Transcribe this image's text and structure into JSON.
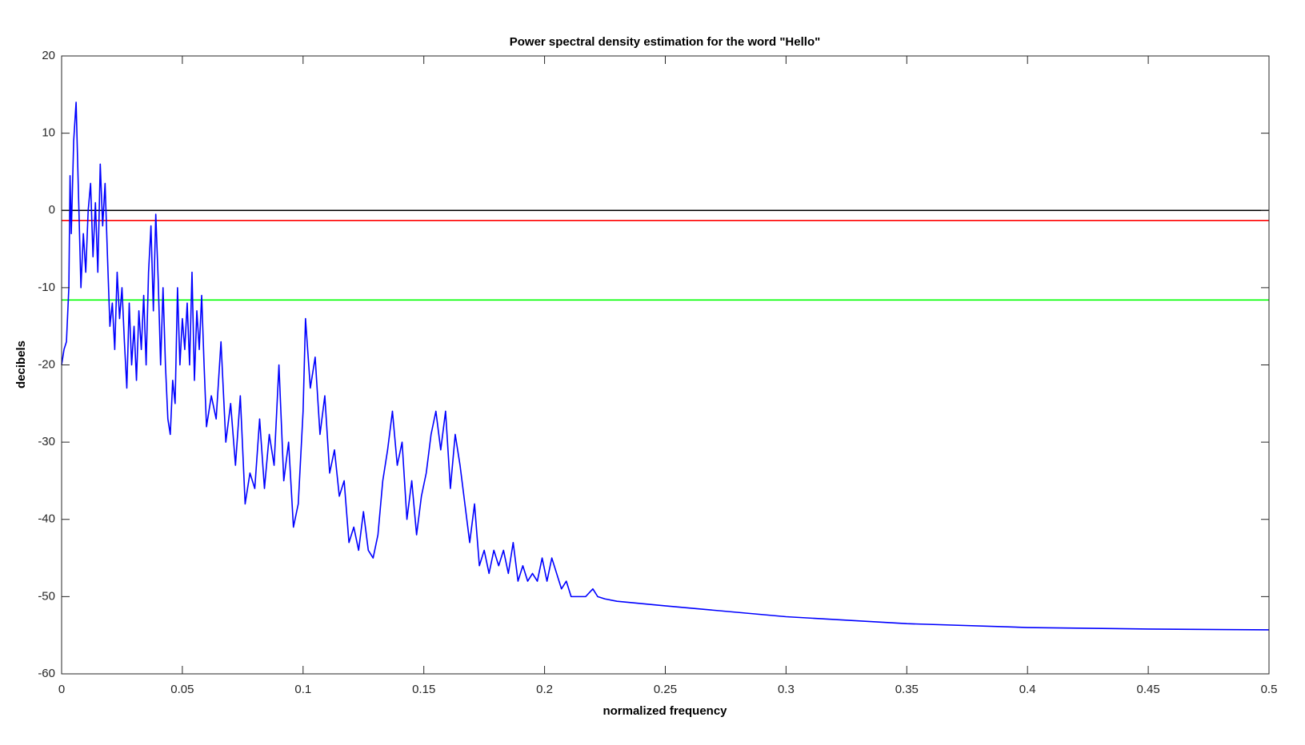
{
  "chart_data": {
    "type": "line",
    "title": "Power spectral density estimation for the word \"Hello\"",
    "x_label": "normalized frequency",
    "y_label": "decibels",
    "xlim": [
      0,
      0.5
    ],
    "ylim": [
      -60,
      20
    ],
    "xticks": [
      0,
      0.05,
      0.1,
      0.15,
      0.2,
      0.25,
      0.3,
      0.35,
      0.4,
      0.45,
      0.5
    ],
    "yticks": [
      -60,
      -50,
      -40,
      -30,
      -20,
      -10,
      0,
      10,
      20
    ],
    "grid": false,
    "series": [
      {
        "color": "#0000ff",
        "x": [
          0,
          0.001,
          0.002,
          0.003,
          0.0035,
          0.004,
          0.005,
          0.006,
          0.007,
          0.008,
          0.009,
          0.01,
          0.011,
          0.012,
          0.013,
          0.014,
          0.015,
          0.016,
          0.017,
          0.018,
          0.019,
          0.02,
          0.021,
          0.022,
          0.023,
          0.024,
          0.025,
          0.026,
          0.027,
          0.028,
          0.029,
          0.03,
          0.031,
          0.032,
          0.033,
          0.034,
          0.035,
          0.036,
          0.037,
          0.038,
          0.039,
          0.04,
          0.041,
          0.042,
          0.043,
          0.044,
          0.045,
          0.046,
          0.047,
          0.048,
          0.049,
          0.05,
          0.051,
          0.052,
          0.053,
          0.054,
          0.055,
          0.056,
          0.057,
          0.058,
          0.059,
          0.06,
          0.062,
          0.064,
          0.066,
          0.068,
          0.07,
          0.072,
          0.074,
          0.076,
          0.078,
          0.08,
          0.082,
          0.084,
          0.086,
          0.088,
          0.09,
          0.092,
          0.094,
          0.096,
          0.098,
          0.1,
          0.101,
          0.103,
          0.105,
          0.107,
          0.109,
          0.111,
          0.113,
          0.115,
          0.117,
          0.119,
          0.121,
          0.123,
          0.125,
          0.127,
          0.129,
          0.131,
          0.133,
          0.135,
          0.137,
          0.139,
          0.141,
          0.143,
          0.145,
          0.147,
          0.149,
          0.151,
          0.153,
          0.155,
          0.157,
          0.159,
          0.161,
          0.163,
          0.165,
          0.167,
          0.169,
          0.171,
          0.173,
          0.175,
          0.177,
          0.179,
          0.181,
          0.183,
          0.185,
          0.187,
          0.189,
          0.191,
          0.193,
          0.195,
          0.197,
          0.199,
          0.201,
          0.203,
          0.205,
          0.207,
          0.209,
          0.211,
          0.214,
          0.217,
          0.22,
          0.222,
          0.225,
          0.23,
          0.25,
          0.3,
          0.35,
          0.4,
          0.45,
          0.5
        ],
        "values": [
          -20,
          -18,
          -17,
          -10,
          4.5,
          -3,
          9,
          14,
          2,
          -10,
          -3,
          -8,
          0,
          3.5,
          -6,
          1,
          -8,
          6,
          -2,
          3.5,
          -6,
          -15,
          -12,
          -18,
          -8,
          -14,
          -10,
          -17,
          -23,
          -12,
          -20,
          -15,
          -22,
          -13,
          -18,
          -11,
          -20,
          -8,
          -2,
          -13,
          -0.5,
          -9,
          -20,
          -10,
          -20,
          -27,
          -29,
          -22,
          -25,
          -10,
          -20,
          -14,
          -18,
          -12,
          -20,
          -8,
          -22,
          -13,
          -18,
          -11,
          -20,
          -28,
          -24,
          -27,
          -17,
          -30,
          -25,
          -33,
          -24,
          -38,
          -34,
          -36,
          -27,
          -36,
          -29,
          -33,
          -20,
          -35,
          -30,
          -41,
          -38,
          -26,
          -14,
          -23,
          -19,
          -29,
          -24,
          -34,
          -31,
          -37,
          -35,
          -43,
          -41,
          -44,
          -39,
          -44,
          -45,
          -42,
          -35,
          -31,
          -26,
          -33,
          -30,
          -40,
          -35,
          -42,
          -37,
          -34,
          -29,
          -26,
          -31,
          -26,
          -36,
          -29,
          -33,
          -38,
          -43,
          -38,
          -46,
          -44,
          -47,
          -44,
          -46,
          -44,
          -47,
          -43,
          -48,
          -46,
          -48,
          -47,
          -48,
          -45,
          -48,
          -45,
          -47,
          -49,
          -48,
          -50,
          -50,
          -50,
          -49,
          -50,
          -50.3,
          -50.6,
          -51.2,
          -52.6,
          -53.5,
          -54,
          -54.2,
          -54.3
        ]
      },
      {
        "color": "#000000",
        "x": [
          0,
          0.5
        ],
        "values": [
          0,
          0
        ]
      },
      {
        "color": "#ff0000",
        "x": [
          0,
          0.5
        ],
        "values": [
          -1.3,
          -1.3
        ]
      },
      {
        "color": "#00ff00",
        "x": [
          0,
          0.5
        ],
        "values": [
          -11.6,
          -11.6
        ]
      }
    ]
  }
}
